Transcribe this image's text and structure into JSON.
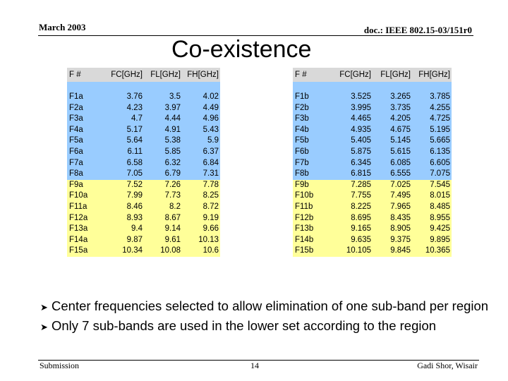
{
  "header": {
    "date": "March 2003",
    "doc_id": "doc.: IEEE 802.15-03/151r0"
  },
  "slide": {
    "title": "Co-existence"
  },
  "table_a": {
    "headers": [
      "F #",
      "FC[GHz]",
      "FL[GHz]",
      "FH[GHz]"
    ],
    "rows": [
      {
        "f": "F1a",
        "fc": "3.76",
        "fl": "3.5",
        "fh": "4.02",
        "band": "blue"
      },
      {
        "f": "F2a",
        "fc": "4.23",
        "fl": "3.97",
        "fh": "4.49",
        "band": "blue"
      },
      {
        "f": "F3a",
        "fc": "4.7",
        "fl": "4.44",
        "fh": "4.96",
        "band": "blue"
      },
      {
        "f": "F4a",
        "fc": "5.17",
        "fl": "4.91",
        "fh": "5.43",
        "band": "blue"
      },
      {
        "f": "F5a",
        "fc": "5.64",
        "fl": "5.38",
        "fh": "5.9",
        "band": "blue"
      },
      {
        "f": "F6a",
        "fc": "6.11",
        "fl": "5.85",
        "fh": "6.37",
        "band": "blue"
      },
      {
        "f": "F7a",
        "fc": "6.58",
        "fl": "6.32",
        "fh": "6.84",
        "band": "blue"
      },
      {
        "f": "F8a",
        "fc": "7.05",
        "fl": "6.79",
        "fh": "7.31",
        "band": "blue"
      },
      {
        "f": "F9a",
        "fc": "7.52",
        "fl": "7.26",
        "fh": "7.78",
        "band": "yellow"
      },
      {
        "f": "F10a",
        "fc": "7.99",
        "fl": "7.73",
        "fh": "8.25",
        "band": "yellow"
      },
      {
        "f": "F11a",
        "fc": "8.46",
        "fl": "8.2",
        "fh": "8.72",
        "band": "yellow"
      },
      {
        "f": "F12a",
        "fc": "8.93",
        "fl": "8.67",
        "fh": "9.19",
        "band": "yellow"
      },
      {
        "f": "F13a",
        "fc": "9.4",
        "fl": "9.14",
        "fh": "9.66",
        "band": "yellow"
      },
      {
        "f": "F14a",
        "fc": "9.87",
        "fl": "9.61",
        "fh": "10.13",
        "band": "yellow"
      },
      {
        "f": "F15a",
        "fc": "10.34",
        "fl": "10.08",
        "fh": "10.6",
        "band": "yellow"
      }
    ]
  },
  "table_b": {
    "headers": [
      "F #",
      "FC[GHz]",
      "FL[GHz]",
      "FH[GHz]"
    ],
    "rows": [
      {
        "f": "F1b",
        "fc": "3.525",
        "fl": "3.265",
        "fh": "3.785",
        "band": "blue"
      },
      {
        "f": "F2b",
        "fc": "3.995",
        "fl": "3.735",
        "fh": "4.255",
        "band": "blue"
      },
      {
        "f": "F3b",
        "fc": "4.465",
        "fl": "4.205",
        "fh": "4.725",
        "band": "blue"
      },
      {
        "f": "F4b",
        "fc": "4.935",
        "fl": "4.675",
        "fh": "5.195",
        "band": "blue"
      },
      {
        "f": "F5b",
        "fc": "5.405",
        "fl": "5.145",
        "fh": "5.665",
        "band": "blue"
      },
      {
        "f": "F6b",
        "fc": "5.875",
        "fl": "5.615",
        "fh": "6.135",
        "band": "blue"
      },
      {
        "f": "F7b",
        "fc": "6.345",
        "fl": "6.085",
        "fh": "6.605",
        "band": "blue"
      },
      {
        "f": "F8b",
        "fc": "6.815",
        "fl": "6.555",
        "fh": "7.075",
        "band": "blue"
      },
      {
        "f": "F9b",
        "fc": "7.285",
        "fl": "7.025",
        "fh": "7.545",
        "band": "yellow"
      },
      {
        "f": "F10b",
        "fc": "7.755",
        "fl": "7.495",
        "fh": "8.015",
        "band": "yellow"
      },
      {
        "f": "F11b",
        "fc": "8.225",
        "fl": "7.965",
        "fh": "8.485",
        "band": "yellow"
      },
      {
        "f": "F12b",
        "fc": "8.695",
        "fl": "8.435",
        "fh": "8.955",
        "band": "yellow"
      },
      {
        "f": "F13b",
        "fc": "9.165",
        "fl": "8.905",
        "fh": "9.425",
        "band": "yellow"
      },
      {
        "f": "F14b",
        "fc": "9.635",
        "fl": "9.375",
        "fh": "9.895",
        "band": "yellow"
      },
      {
        "f": "F15b",
        "fc": "10.105",
        "fl": "9.845",
        "fh": "10.365",
        "band": "yellow"
      }
    ]
  },
  "bullets": [
    "Center frequencies selected to allow elimination of one sub-band per region",
    "Only 7 sub-bands are used in the lower set according to the region"
  ],
  "bullet_icon": "arrow-right-icon",
  "colors": {
    "header_gray": "#d9d9d9",
    "lower_band_blue": "#99ccff",
    "upper_band_yellow": "#ffff99"
  },
  "footer": {
    "left": "Submission",
    "page_number": "14",
    "author": "Gadi Shor, Wisair"
  }
}
